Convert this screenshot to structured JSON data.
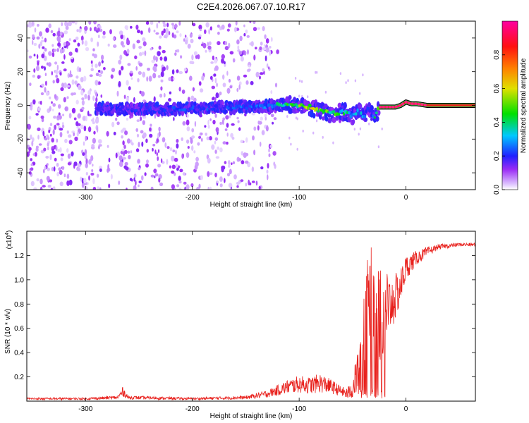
{
  "title": "C2E4.2026.067.07.10.R17",
  "colors": {
    "snr_line": "#e8201c",
    "signal_peak": "#e8201c",
    "background": "#ffffff",
    "axis": "#000000"
  },
  "chart_data": [
    {
      "type": "heatmap",
      "title": "C2E4.2026.067.07.10.R17",
      "xlabel": "Height of straight line (km)",
      "ylabel": "Frequency (Hz)",
      "xlim": [
        -355,
        65
      ],
      "ylim": [
        -50,
        50
      ],
      "xticks": [
        -300,
        -200,
        -100,
        0
      ],
      "yticks": [
        -40,
        -20,
        0,
        20,
        40
      ],
      "xtick_labels": [
        "-300",
        "-200",
        "-100",
        "0"
      ],
      "ytick_labels": [
        "-40",
        "-20",
        "0",
        "20",
        "40"
      ],
      "colorbar": {
        "label": "Normalized spectral amplitude",
        "range": [
          0,
          1
        ],
        "ticks": [
          0.0,
          0.2,
          0.4,
          0.6,
          0.8
        ],
        "tick_labels": [
          "0.0",
          "0.2",
          "0.4",
          "0.6",
          "0.8"
        ],
        "colors": [
          "#ffffff",
          "#9a2cf5",
          "#2020ff",
          "#00e0e0",
          "#00e000",
          "#e0e000",
          "#ff8000",
          "#ff1010",
          "#ff00a0"
        ]
      },
      "noise_region_x": [
        -355,
        -120
      ],
      "signal_track": {
        "x": [
          -290,
          -260,
          -230,
          -200,
          -170,
          -140,
          -120,
          -110,
          -100,
          -90,
          -80,
          -70,
          -60,
          -50,
          -45,
          -40,
          -35,
          -30,
          -25,
          -20,
          -15,
          -10,
          -5,
          0,
          5,
          10,
          20,
          40,
          65
        ],
        "frequency": [
          -2,
          -2,
          -2,
          -2,
          -1,
          -1,
          0,
          1,
          0,
          -1,
          -3,
          -5,
          -4,
          -6,
          -3,
          -7,
          -2,
          -8,
          -1,
          -1,
          -1,
          -1,
          0,
          2,
          1,
          1,
          0,
          0,
          0
        ],
        "amplitude": [
          0.15,
          0.18,
          0.2,
          0.22,
          0.2,
          0.25,
          0.35,
          0.45,
          0.5,
          0.55,
          0.5,
          0.45,
          0.4,
          0.35,
          0.3,
          0.3,
          0.25,
          0.3,
          0.8,
          0.9,
          0.9,
          0.9,
          0.9,
          0.9,
          0.9,
          0.9,
          0.92,
          0.95,
          0.95
        ]
      }
    },
    {
      "type": "line",
      "xlabel": "Height of straight line (km)",
      "ylabel": "SNR (10 * v/v)",
      "scale_label": "(x10",
      "scale_exp": "4",
      "scale_close": ")",
      "xlim": [
        -355,
        65
      ],
      "ylim": [
        0,
        1.4
      ],
      "xticks": [
        -300,
        -200,
        -100,
        0
      ],
      "yticks": [
        0.2,
        0.4,
        0.6,
        0.8,
        1.0,
        1.2
      ],
      "xtick_labels": [
        "-300",
        "-200",
        "-100",
        "0"
      ],
      "ytick_labels": [
        "0.2",
        "0.4",
        "0.6",
        "0.8",
        "1.0",
        "1.2"
      ],
      "series": [
        {
          "name": "SNR",
          "x": [
            -355,
            -300,
            -270,
            -265,
            -260,
            -200,
            -150,
            -130,
            -110,
            -100,
            -90,
            -80,
            -70,
            -60,
            -55,
            -50,
            -45,
            -40,
            -35,
            -30,
            -25,
            -20,
            -15,
            -10,
            -5,
            0,
            10,
            20,
            30,
            40,
            50,
            65
          ],
          "y": [
            0.02,
            0.02,
            0.03,
            0.08,
            0.03,
            0.02,
            0.03,
            0.06,
            0.12,
            0.14,
            0.13,
            0.15,
            0.12,
            0.08,
            0.06,
            0.1,
            0.25,
            0.65,
            0.82,
            0.92,
            0.7,
            0.75,
            0.8,
            0.85,
            0.95,
            1.1,
            1.18,
            1.23,
            1.27,
            1.28,
            1.29,
            1.29
          ],
          "noise_amp": [
            0.01,
            0.01,
            0.015,
            0.04,
            0.015,
            0.01,
            0.015,
            0.03,
            0.06,
            0.07,
            0.07,
            0.08,
            0.06,
            0.04,
            0.05,
            0.08,
            0.2,
            0.35,
            0.4,
            0.4,
            0.45,
            0.35,
            0.25,
            0.2,
            0.15,
            0.1,
            0.06,
            0.04,
            0.02,
            0.02,
            0.015,
            0.015
          ]
        }
      ]
    }
  ]
}
